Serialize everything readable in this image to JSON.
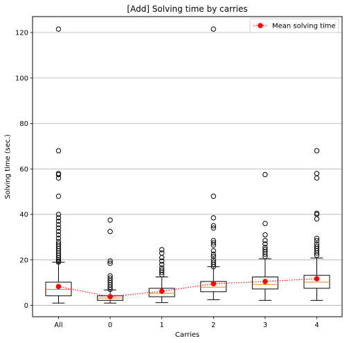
{
  "chart_data": {
    "type": "box",
    "title": "[Add] Solving time by carries",
    "xlabel": "Carries",
    "ylabel": "Solving time (sec.)",
    "ylim": [
      -5,
      127
    ],
    "yticks": [
      0,
      20,
      40,
      60,
      80,
      100,
      120
    ],
    "grid": "y",
    "legend": {
      "placement": "top-right",
      "label": "Mean solving time"
    },
    "colors": {
      "median": "#ff7f0e",
      "mean": "#ff0000",
      "box": "#000000",
      "grid": "#b0b0b0"
    },
    "categories": [
      "All",
      "0",
      "1",
      "2",
      "3",
      "4"
    ],
    "boxes": [
      {
        "whisker_low": 1.0,
        "q1": 4.2,
        "median": 7.0,
        "q3": 10.2,
        "whisker_high": 19.0,
        "outliers": [
          19.0,
          19.5,
          20.2,
          21.0,
          22.0,
          23.0,
          24.0,
          25.0,
          26.0,
          27.0,
          28.0,
          29.5,
          31.0,
          32.5,
          34.0,
          35.5,
          37.0,
          38.5,
          40.0,
          48.0,
          56.0,
          57.5,
          58.0,
          68.0,
          121.5
        ]
      },
      {
        "whisker_low": 1.0,
        "q1": 2.2,
        "median": 3.2,
        "q3": 4.2,
        "whisker_high": 6.8,
        "outliers": [
          7.0,
          8.0,
          9.0,
          10.0,
          11.0,
          12.0,
          13.0,
          18.5,
          19.5,
          32.5,
          37.5
        ]
      },
      {
        "whisker_low": 1.2,
        "q1": 3.8,
        "median": 5.3,
        "q3": 7.5,
        "whisker_high": 12.5,
        "outliers": [
          13.5,
          14.5,
          15.5,
          16.5,
          18.0,
          19.5,
          21.0,
          23.0,
          24.5
        ]
      },
      {
        "whisker_low": 2.5,
        "q1": 6.0,
        "median": 8.0,
        "q3": 10.5,
        "whisker_high": 17.0,
        "outliers": [
          17.0,
          18.0,
          19.0,
          20.0,
          21.5,
          22.5,
          24.0,
          26.5,
          27.5,
          28.5,
          34.0,
          35.0,
          38.5,
          48.0,
          121.5
        ]
      },
      {
        "whisker_low": 2.2,
        "q1": 7.2,
        "median": 9.2,
        "q3": 12.5,
        "whisker_high": 20.5,
        "outliers": [
          21.5,
          22.5,
          23.5,
          24.5,
          25.5,
          27.0,
          28.5,
          31.0,
          36.0,
          57.5
        ]
      },
      {
        "whisker_low": 2.2,
        "q1": 7.5,
        "median": 10.2,
        "q3": 13.2,
        "whisker_high": 20.8,
        "outliers": [
          22.0,
          23.0,
          24.0,
          25.0,
          26.0,
          27.0,
          28.5,
          29.5,
          38.0,
          40.0,
          40.5,
          56.0,
          58.0,
          68.0
        ]
      }
    ],
    "means": [
      8.3,
      3.8,
      6.2,
      9.5,
      10.5,
      11.7
    ]
  }
}
